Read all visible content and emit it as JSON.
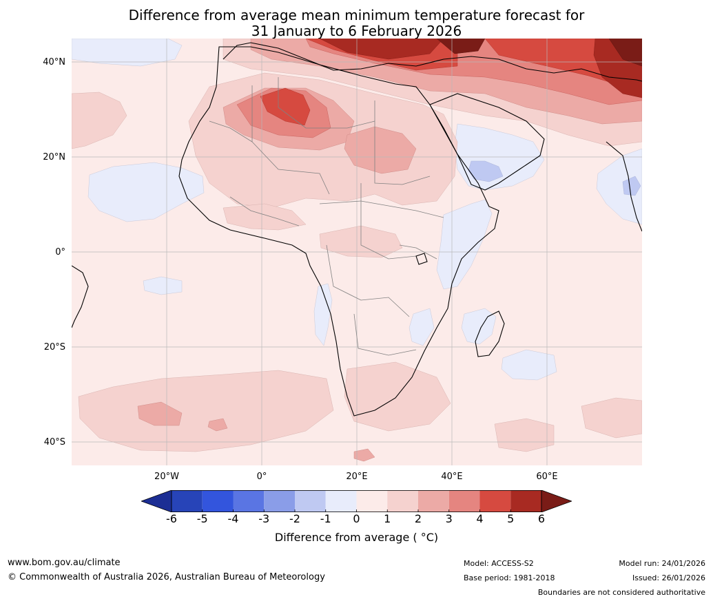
{
  "title": {
    "line1": "Difference from average mean minimum temperature forecast for",
    "line2": "31 January to 6 February 2026"
  },
  "map": {
    "lat_labels": [
      "40°N",
      "20°N",
      "0°",
      "20°S",
      "40°S"
    ],
    "lon_labels": [
      "20°W",
      "0°",
      "20°E",
      "40°E",
      "60°E"
    ]
  },
  "colorbar": {
    "label": "Difference from average ( °C)",
    "ticks": [
      "-6",
      "-5",
      "-4",
      "-3",
      "-2",
      "-1",
      "0",
      "1",
      "2",
      "3",
      "4",
      "5",
      "6"
    ],
    "colors": [
      "#1c2e94",
      "#2744b8",
      "#3355dd",
      "#5a75e3",
      "#8a9de8",
      "#bfc9f2",
      "#e8ecfb",
      "#fcebe9",
      "#f5d2cf",
      "#ecaaa6",
      "#e58580",
      "#d64a40",
      "#a82a22",
      "#7a1c17"
    ]
  },
  "footer": {
    "url": "www.bom.gov.au/climate",
    "copyright": "© Commonwealth of Australia 2026, Australian Bureau of Meteorology",
    "model": "Model: ACCESS-S2",
    "base_period": "Base period: 1981-2018",
    "model_run": "Model run: 24/01/2026",
    "issued": "Issued: 26/01/2026",
    "boundaries": "Boundaries are not considered authoritative"
  }
}
